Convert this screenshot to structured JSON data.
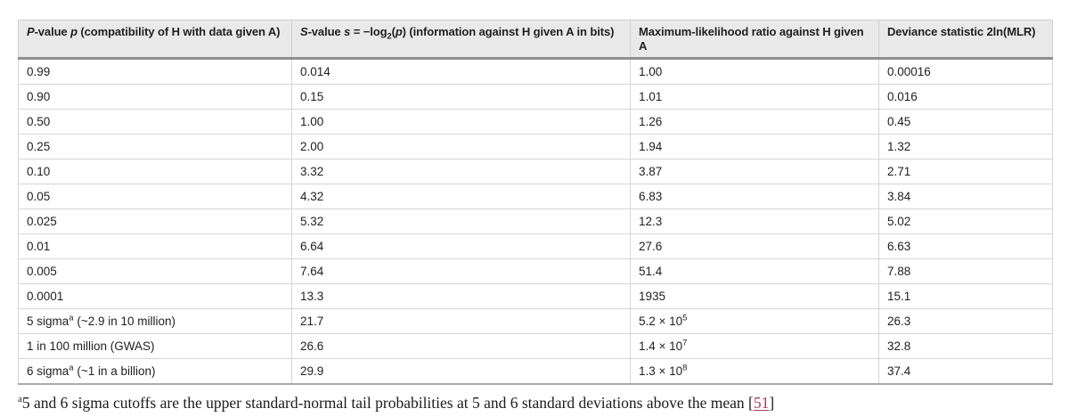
{
  "colors": {
    "header_bg": "#e9e9e9",
    "header_rule": "#8f8f8f",
    "cell_border": "#d6d6d6",
    "outer_border": "#c9c9c9",
    "table_bottom_border": "#aaaaaa",
    "text": "#1f1f1f",
    "link": "#aa3c64"
  },
  "table": {
    "columns": [
      {
        "id": "p-value",
        "segments": [
          {
            "t": "P",
            "i": true
          },
          {
            "t": "-value "
          },
          {
            "t": "p",
            "i": true
          },
          {
            "t": " (compatibility of "
          },
          {
            "t": "H"
          },
          {
            "t": " with data given "
          },
          {
            "t": "A"
          },
          {
            "t": ")"
          }
        ]
      },
      {
        "id": "s-value",
        "segments": [
          {
            "t": "S",
            "i": true
          },
          {
            "t": "-value "
          },
          {
            "t": "s",
            "i": true
          },
          {
            "t": " = −log"
          },
          {
            "t": "2",
            "sub": true
          },
          {
            "t": "("
          },
          {
            "t": "p",
            "i": true
          },
          {
            "t": ") (information against "
          },
          {
            "t": "H"
          },
          {
            "t": " given "
          },
          {
            "t": "A"
          },
          {
            "t": " in bits)"
          }
        ]
      },
      {
        "id": "max-likelihood-ratio",
        "segments": [
          {
            "t": "Maximum-likelihood ratio against "
          },
          {
            "t": "H"
          },
          {
            "t": " given "
          },
          {
            "t": "A"
          }
        ]
      },
      {
        "id": "deviance-statistic",
        "segments": [
          {
            "t": "Deviance statistic 2ln(MLR)"
          }
        ]
      }
    ],
    "rows": [
      [
        "0.99",
        "0.014",
        "1.00",
        "0.00016"
      ],
      [
        "0.90",
        "0.15",
        "1.01",
        "0.016"
      ],
      [
        "0.50",
        "1.00",
        "1.26",
        "0.45"
      ],
      [
        "0.25",
        "2.00",
        "1.94",
        "1.32"
      ],
      [
        "0.10",
        "3.32",
        "3.87",
        "2.71"
      ],
      [
        "0.05",
        "4.32",
        "6.83",
        "3.84"
      ],
      [
        "0.025",
        "5.32",
        "12.3",
        "5.02"
      ],
      [
        "0.01",
        "6.64",
        "27.6",
        "6.63"
      ],
      [
        "0.005",
        "7.64",
        "51.4",
        "7.88"
      ],
      [
        "0.0001",
        "13.3",
        "1935",
        "15.1"
      ],
      [
        [
          {
            "t": "5 sigma"
          },
          {
            "t": "a",
            "sup": true
          },
          {
            "t": " (~2.9 in 10 million)"
          }
        ],
        "21.7",
        [
          {
            "t": "5.2 × 10"
          },
          {
            "t": "5",
            "sup": true
          }
        ],
        "26.3"
      ],
      [
        "1 in 100 million (GWAS)",
        "26.6",
        [
          {
            "t": "1.4 × 10"
          },
          {
            "t": "7",
            "sup": true
          }
        ],
        "32.8"
      ],
      [
        [
          {
            "t": "6 sigma"
          },
          {
            "t": "a",
            "sup": true
          },
          {
            "t": " (~1 in a billion)"
          }
        ],
        "29.9",
        [
          {
            "t": "1.3 × 10"
          },
          {
            "t": "8",
            "sup": true
          }
        ],
        "37.4"
      ]
    ]
  },
  "footnote": {
    "segments": [
      {
        "t": "a",
        "sup": true
      },
      {
        "t": "5 and 6 sigma cutoffs are the upper standard-normal tail probabilities at 5 and 6 standard deviations above the mean "
      },
      {
        "t": "["
      },
      {
        "t": "51",
        "link": true
      },
      {
        "t": "]"
      }
    ]
  }
}
